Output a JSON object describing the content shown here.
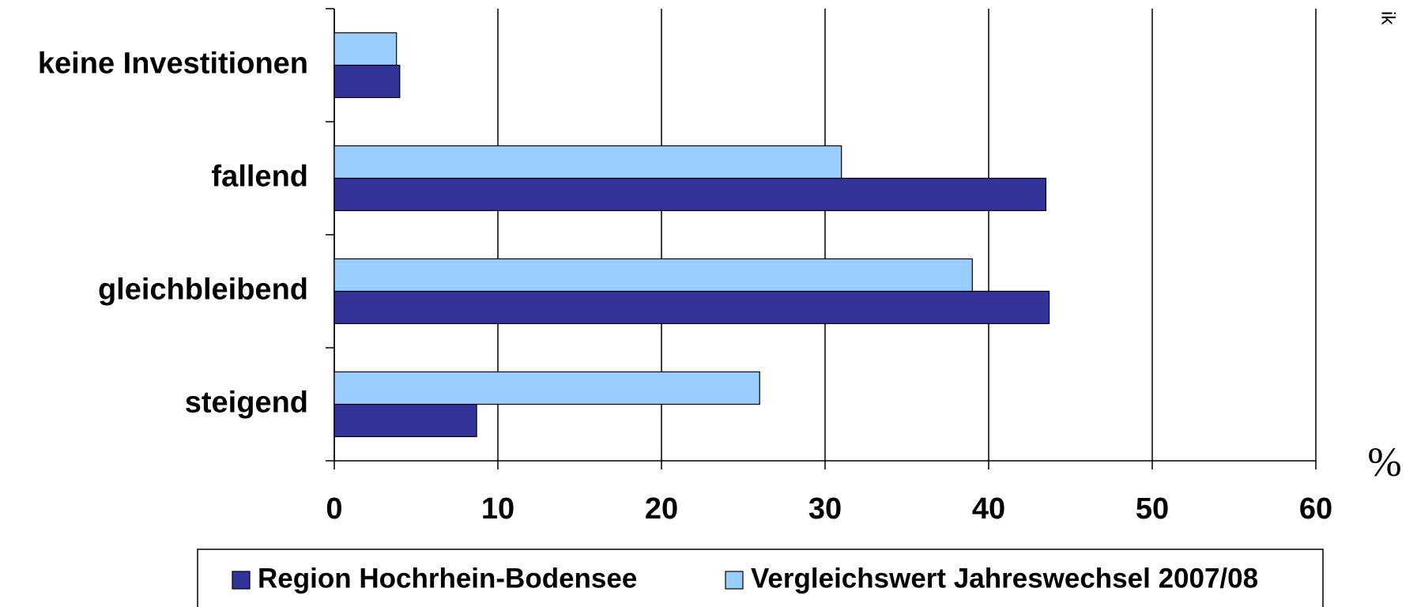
{
  "chart_data": {
    "type": "barh",
    "categories": [
      "keine Investitionen",
      "fallend",
      "gleichbleibend",
      "steigend"
    ],
    "series": [
      {
        "name": "Region Hochrhein-Bodensee",
        "color": "#333399",
        "values": [
          4,
          43.5,
          43.7,
          8.7
        ]
      },
      {
        "name": "Vergleichswert Jahreswechsel 2007/08",
        "color": "#99ccff",
        "values": [
          3.8,
          31,
          39,
          26
        ]
      }
    ],
    "xlim": [
      0,
      60
    ],
    "xticks": [
      0,
      10,
      20,
      30,
      40,
      50,
      60
    ],
    "grid": true,
    "x_unit": "%",
    "annotation": "ik"
  }
}
